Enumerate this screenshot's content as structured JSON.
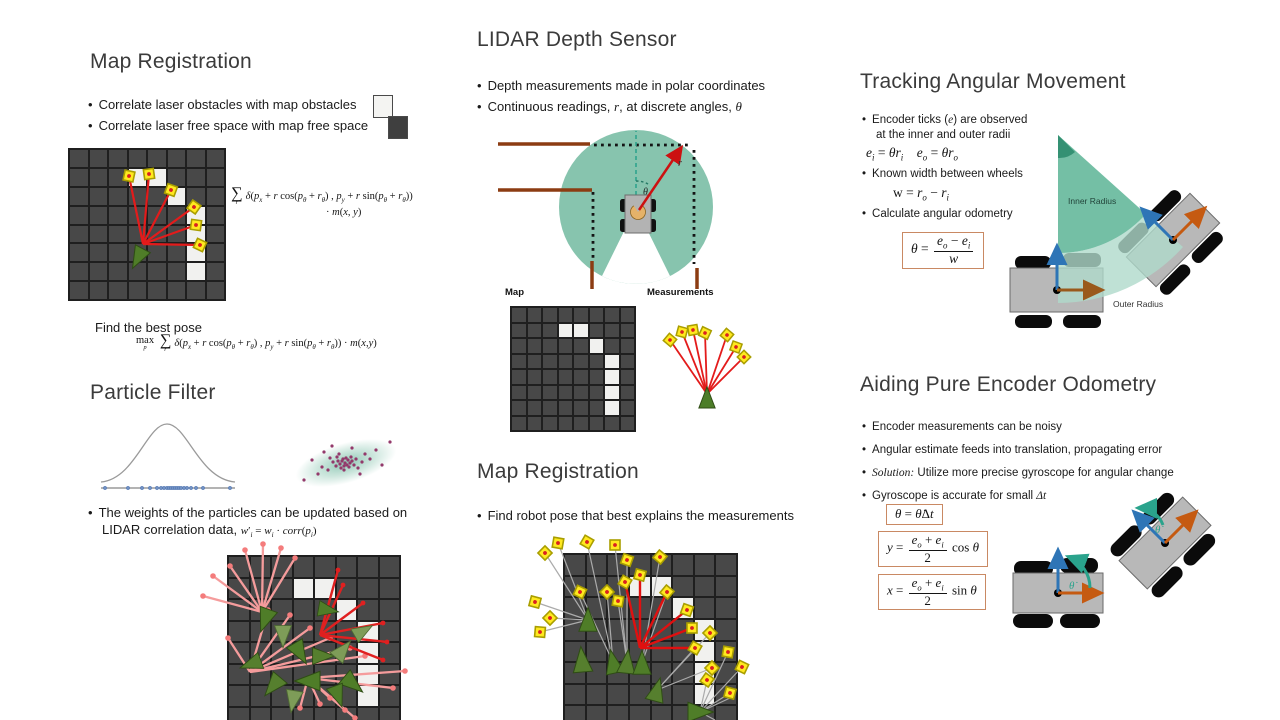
{
  "colors": {
    "lidar_teal": "#87c4ae",
    "wedge_teal": "#55b191",
    "annulus_teal": "#afdaca",
    "wall_brown": "#8c3c12",
    "laser_red": "#e31b1b",
    "pink_ray": "#f59c9c",
    "marker_yellow": "#ffe81f",
    "marker_dot_red": "#d92121",
    "particle_green": "#4f7d28",
    "robot_gray": "#b5b5b5",
    "arrow_blue": "#2e75b6",
    "arrow_orange": "#c55a11",
    "arrow_teal": "#2aa38c",
    "grid_dark": "#484848",
    "grid_white": "#f1f1ef",
    "formula_box_border": "#c98963",
    "obstacle_swatch": "#f4f4f2",
    "free_space_swatch": "#3f3f3f"
  },
  "grid": {
    "rows": 8,
    "cols": 8,
    "white_cells": [
      [
        1,
        3
      ],
      [
        1,
        4
      ],
      [
        2,
        5
      ],
      [
        3,
        6
      ],
      [
        4,
        6
      ],
      [
        5,
        6
      ],
      [
        6,
        6
      ]
    ]
  },
  "s1": {
    "title": "Map Registration",
    "bullets": [
      "Correlate laser obstacles with map obstacles",
      "Correlate laser free space with map free space"
    ],
    "find_pose": "Find the best pose",
    "f_sum1": [
      {
        "U": {
          "c": "∑",
          "u": "r",
          "big": 1
        }
      },
      {
        "i": "δ"
      },
      {
        "r": "("
      },
      {
        "i": "p"
      },
      {
        "b": "x"
      },
      {
        "r": " + "
      },
      {
        "i": "r"
      },
      {
        "r": " cos("
      },
      {
        "i": "p"
      },
      {
        "b": "θ"
      },
      {
        "r": " + "
      },
      {
        "i": "r"
      },
      {
        "b": "θ"
      },
      {
        "r": ") , "
      },
      {
        "i": "p"
      },
      {
        "b": "y"
      },
      {
        "r": " + "
      },
      {
        "i": "r"
      },
      {
        "r": " sin("
      },
      {
        "i": "p"
      },
      {
        "b": "θ"
      },
      {
        "r": " + "
      },
      {
        "i": "r"
      },
      {
        "b": "θ"
      },
      {
        "r": "))"
      }
    ],
    "f_sum2": [
      {
        "r": "· "
      },
      {
        "i": "m"
      },
      {
        "r": "("
      },
      {
        "i": "x"
      },
      {
        "r": ", "
      },
      {
        "i": "y"
      },
      {
        "r": ")"
      }
    ],
    "f_max": [
      {
        "U": {
          "c": "max",
          "u": "p"
        }
      },
      {
        "r": " "
      },
      {
        "U": {
          "c": "∑",
          "u": "r",
          "big": 1
        }
      },
      {
        "i": "δ"
      },
      {
        "r": "("
      },
      {
        "i": "p"
      },
      {
        "b": "x"
      },
      {
        "r": " + "
      },
      {
        "i": "r"
      },
      {
        "r": " cos("
      },
      {
        "i": "p"
      },
      {
        "b": "θ"
      },
      {
        "r": " + "
      },
      {
        "i": "r"
      },
      {
        "b": "θ"
      },
      {
        "r": ") , "
      },
      {
        "i": "p"
      },
      {
        "b": "y"
      },
      {
        "r": " + "
      },
      {
        "i": "r"
      },
      {
        "r": " sin("
      },
      {
        "i": "p"
      },
      {
        "b": "θ"
      },
      {
        "r": " + "
      },
      {
        "i": "r"
      },
      {
        "b": "θ"
      },
      {
        "r": ")) · "
      },
      {
        "i": "m"
      },
      {
        "r": "("
      },
      {
        "i": "x"
      },
      {
        "r": ","
      },
      {
        "i": "y"
      },
      {
        "r": ")"
      }
    ]
  },
  "s2": {
    "title": "LIDAR Depth Sensor",
    "bullet1": "Depth measurements made in polar coordinates",
    "bullet2": {
      "t1": "Continuous readings, ",
      "v1": "r",
      "t2": ", at discrete angles, ",
      "v2": "θ"
    },
    "map_label": "Map",
    "meas_label": "Measurements",
    "r_label": "r",
    "theta_label": "θ"
  },
  "s3": {
    "title": "Tracking Angular Movement",
    "b1_pre": "Encoder ticks (",
    "b1_e": "e",
    "b1_post": ") are observed",
    "b1_l2": "at the inner and outer radii",
    "b2": "Known width between wheels",
    "b3": "Calculate angular odometry",
    "f_enc": [
      {
        "i": "e"
      },
      {
        "b": "i"
      },
      {
        "r": " = "
      },
      {
        "i": "θ"
      },
      {
        "i": "r"
      },
      {
        "b": "i"
      },
      {
        "r": "    "
      },
      {
        "i": "e"
      },
      {
        "b": "o"
      },
      {
        "r": " = "
      },
      {
        "i": "θ"
      },
      {
        "i": "r"
      },
      {
        "b": "o"
      }
    ],
    "f_w": [
      {
        "r": "w = "
      },
      {
        "i": "r"
      },
      {
        "b": "o"
      },
      {
        "r": " − "
      },
      {
        "i": "r"
      },
      {
        "b": "i"
      }
    ],
    "f_theta": [
      {
        "i": "θ"
      },
      {
        "r": " = "
      },
      {
        "F": {
          "n": [
            {
              "i": "e"
            },
            {
              "b": "o"
            },
            {
              "r": " − "
            },
            {
              "i": "e"
            },
            {
              "b": "i"
            }
          ],
          "d": [
            {
              "i": "w"
            }
          ]
        }
      }
    ],
    "inner_label": "Inner Radius",
    "outer_label": "Outer Radius"
  },
  "s4": {
    "title": "Particle Filter",
    "b1_l1": "The weights of the particles can be updated based on",
    "b1_l2": "LIDAR correlation data, ",
    "f_weights": [
      {
        "i": "w"
      },
      {
        "r": "′"
      },
      {
        "b": "i"
      },
      {
        "r": " = "
      },
      {
        "i": "w"
      },
      {
        "b": "i"
      },
      {
        "r": " · "
      },
      {
        "i": "corr"
      },
      {
        "r": "("
      },
      {
        "i": "p"
      },
      {
        "b": "i"
      },
      {
        "r": ")"
      }
    ]
  },
  "s5": {
    "title": "Map Registration",
    "bullet": "Find robot pose that best explains the measurements"
  },
  "s6": {
    "title": "Aiding Pure Encoder Odometry",
    "b1": "Encoder measurements can be noisy",
    "b2": "Angular estimate feeds into translation, propagating error",
    "b3_i": "Solution:",
    "b3": " Utilize more precise gyroscope for angular change",
    "b4_pre": "Gyroscope is accurate for small ",
    "b4_dt": "Δt",
    "f_t": [
      {
        "i": "θ"
      },
      {
        "r": " = "
      },
      {
        "i": "θ̇"
      },
      {
        "r": "Δ"
      },
      {
        "i": "t"
      }
    ],
    "f_y": [
      {
        "i": "y"
      },
      {
        "r": " = "
      },
      {
        "F": {
          "n": [
            {
              "i": "e"
            },
            {
              "b": "o"
            },
            {
              "r": " + "
            },
            {
              "i": "e"
            },
            {
              "b": "i"
            }
          ],
          "d": [
            {
              "r": "2"
            }
          ]
        }
      },
      {
        "r": " cos "
      },
      {
        "i": "θ"
      }
    ],
    "f_x": [
      {
        "i": "x"
      },
      {
        "r": " = "
      },
      {
        "F": {
          "n": [
            {
              "i": "e"
            },
            {
              "b": "o"
            },
            {
              "r": " + "
            },
            {
              "i": "e"
            },
            {
              "b": "i"
            }
          ],
          "d": [
            {
              "r": "2"
            }
          ]
        }
      },
      {
        "r": " sin "
      },
      {
        "i": "θ"
      }
    ],
    "tdot": "θ̇"
  }
}
